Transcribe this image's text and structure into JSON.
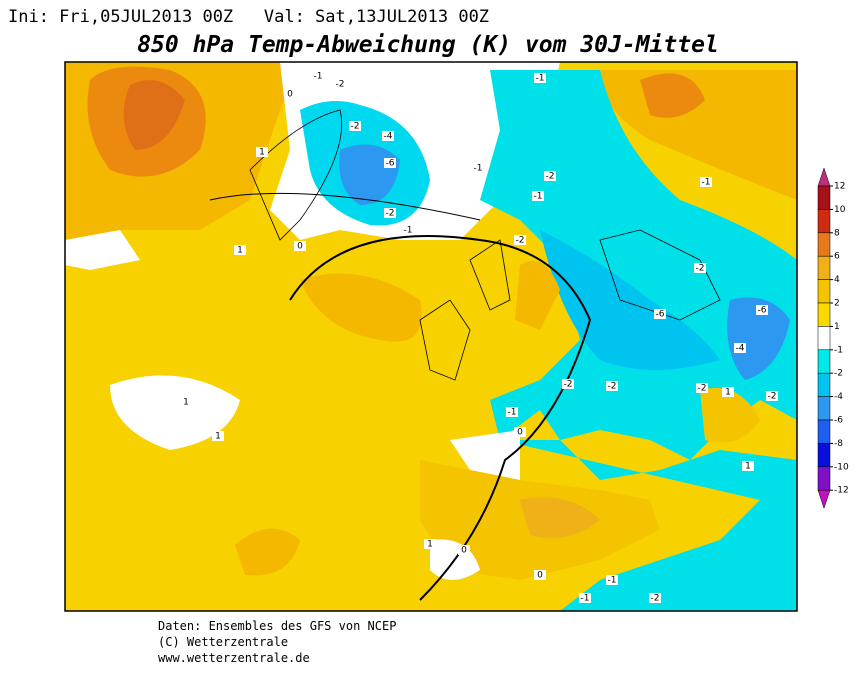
{
  "header": {
    "run": "Ini: Fri,05JUL2013 00Z   Val: Sat,13JUL2013 00Z",
    "title": "850 hPa Temp-Abweichung (K) vom 30J-Mittel"
  },
  "map": {
    "contour_labels": [
      "-1",
      "-2",
      "0",
      "-2",
      "-4",
      "-6",
      "-2",
      "1",
      "-1",
      "-1",
      "1",
      "0",
      "-1",
      "-2",
      "-1",
      "-2",
      "-2",
      "-6",
      "-6",
      "-4",
      "-2",
      "-2",
      "-2",
      "-1",
      "0",
      "1",
      "1",
      "1",
      "-1",
      "0",
      "-1",
      "-2",
      "0",
      "-1",
      "-2",
      "1",
      "1"
    ]
  },
  "legend": {
    "levels": [
      12,
      10,
      8,
      6,
      4,
      2,
      1,
      -1,
      -2,
      -4,
      -6,
      -8,
      -10,
      -12
    ],
    "colors": [
      "#c0307a",
      "#a8101c",
      "#d02c14",
      "#e8781c",
      "#f0b018",
      "#f4c400",
      "#fad800",
      "#ffffff",
      "#00e8e8",
      "#00c4f0",
      "#2c98f0",
      "#1e5ef0",
      "#0810e0",
      "#8010c8",
      "#c010c0"
    ]
  },
  "footer": {
    "lines": [
      "Daten: Ensembles des GFS von NCEP",
      "(C) Wetterzentrale",
      "www.wetterzentrale.de"
    ]
  }
}
